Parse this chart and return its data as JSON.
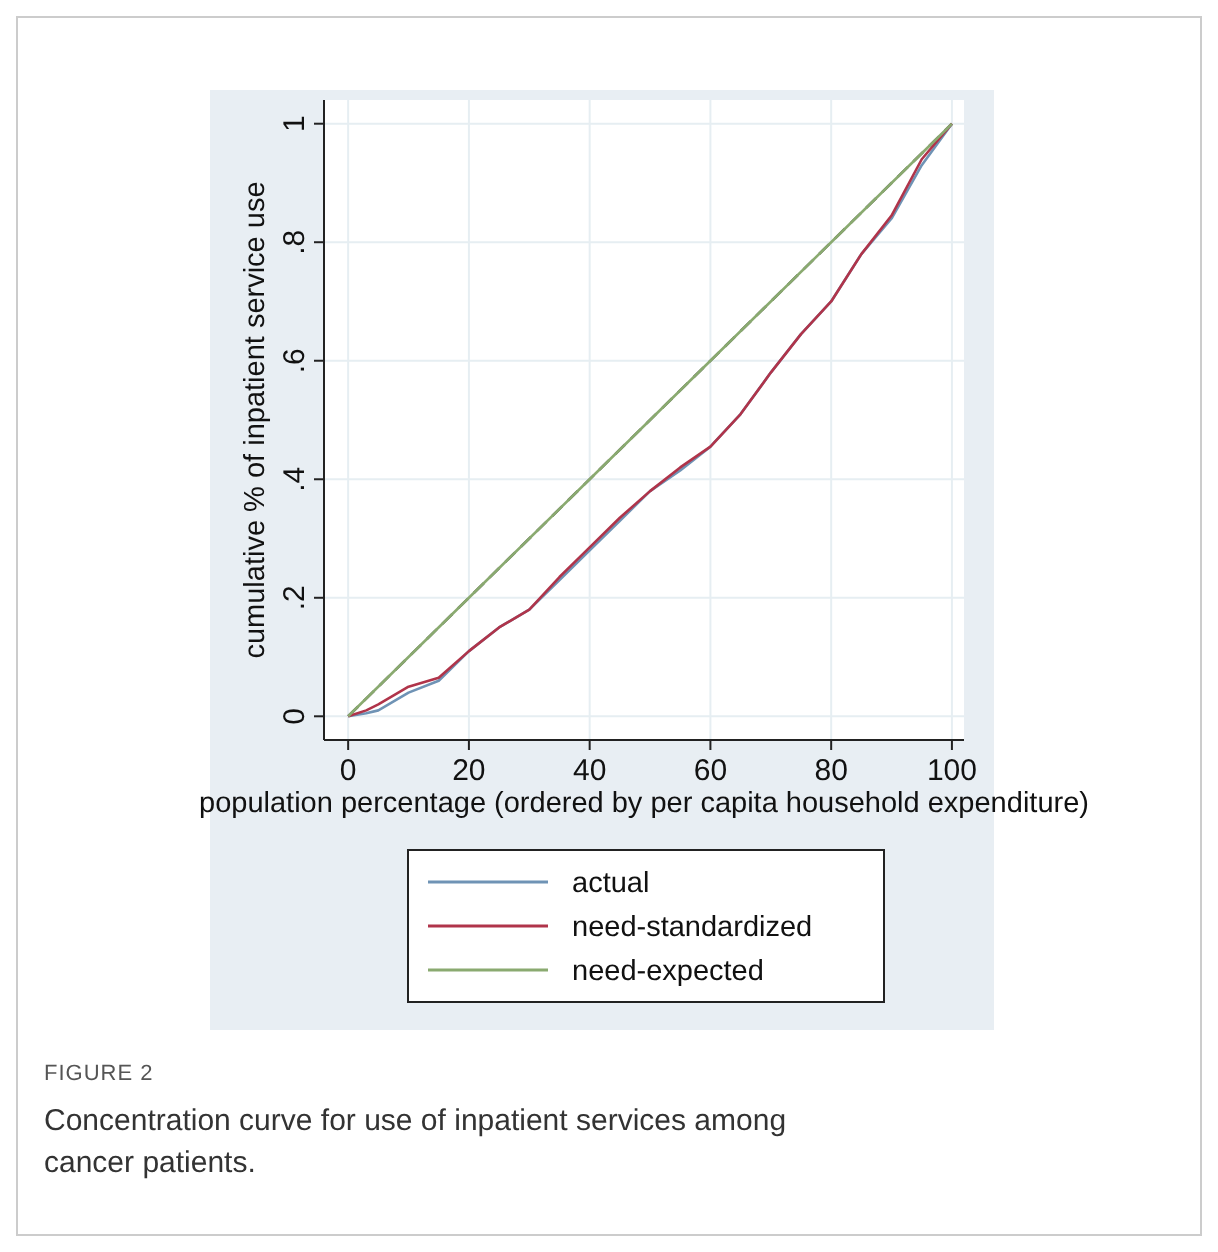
{
  "chart_data": {
    "type": "line",
    "xlabel": "population percentage (ordered by per capita household expenditure)",
    "ylabel": "cumulative % of inpatient service use",
    "xlim": [
      -4,
      102
    ],
    "ylim": [
      -0.04,
      1.04
    ],
    "xticks": [
      0,
      20,
      40,
      60,
      80,
      100
    ],
    "yticks": [
      {
        "value": 0,
        "label": "0"
      },
      {
        "value": 0.2,
        "label": ".2"
      },
      {
        "value": 0.4,
        "label": ".4"
      },
      {
        "value": 0.6,
        "label": ".6"
      },
      {
        "value": 0.8,
        "label": ".8"
      },
      {
        "value": 1,
        "label": "1"
      }
    ],
    "grid": true,
    "legend": "bottom",
    "line_style": "solid",
    "series": [
      {
        "type": "line",
        "line_style": "dashed",
        "color": "#555555",
        "x": [
          0,
          100
        ],
        "values": [
          0,
          1
        ]
      },
      {
        "name": "actual",
        "color": "#6f93b5",
        "x": [
          0,
          3,
          5,
          10,
          15,
          20,
          25,
          30,
          35,
          40,
          45,
          50,
          55,
          60,
          65,
          70,
          75,
          80,
          85,
          90,
          95,
          100
        ],
        "values": [
          0,
          0.005,
          0.01,
          0.04,
          0.06,
          0.11,
          0.15,
          0.18,
          0.23,
          0.28,
          0.33,
          0.38,
          0.415,
          0.455,
          0.51,
          0.58,
          0.645,
          0.7,
          0.78,
          0.84,
          0.93,
          1
        ]
      },
      {
        "name": "need-standardized",
        "color": "#b0344a",
        "x": [
          0,
          3,
          5,
          10,
          15,
          20,
          25,
          30,
          35,
          40,
          45,
          50,
          55,
          60,
          65,
          70,
          75,
          80,
          85,
          90,
          95,
          100
        ],
        "values": [
          0,
          0.01,
          0.02,
          0.05,
          0.065,
          0.11,
          0.15,
          0.18,
          0.235,
          0.285,
          0.335,
          0.38,
          0.42,
          0.455,
          0.51,
          0.58,
          0.645,
          0.7,
          0.78,
          0.845,
          0.94,
          1
        ]
      },
      {
        "name": "need-expected",
        "color": "#8aaa70",
        "x": [
          0,
          20,
          40,
          60,
          80,
          100
        ],
        "values": [
          0,
          0.2,
          0.4,
          0.6,
          0.8,
          1
        ]
      }
    ],
    "annotations": [
      "FIGURE 2",
      "Concentration curve for use of inpatient services among cancer patients."
    ]
  }
}
